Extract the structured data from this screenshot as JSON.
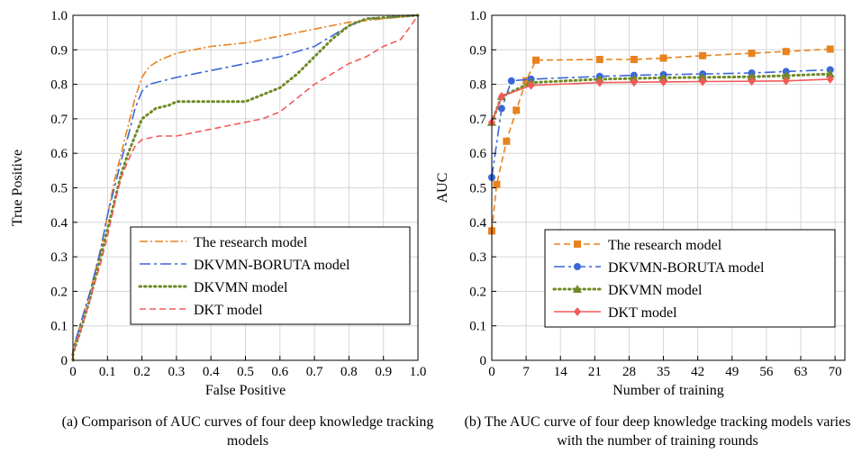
{
  "charts": [
    {
      "type": "line",
      "xlabel": "False Positive",
      "ylabel": "True Positive",
      "xlim": [
        0,
        1
      ],
      "ylim": [
        0,
        1
      ],
      "xticks": [
        "0",
        "0.1",
        "0.2",
        "0.3",
        "0.4",
        "0.5",
        "0.6",
        "0.7",
        "0.8",
        "0.9",
        "1.0"
      ],
      "yticks": [
        "0",
        "0.1",
        "0.2",
        "0.3",
        "0.4",
        "0.5",
        "0.6",
        "0.7",
        "0.8",
        "0.9",
        "1.0"
      ],
      "grid": true,
      "legend_position": "bottom-right",
      "caption": "(a) Comparison of AUC curves of four deep knowledge tracking models",
      "series": [
        {
          "name": "The research model",
          "color": "#e8821e",
          "style": "dashdot",
          "points": [
            [
              0,
              0
            ],
            [
              0,
              0.03
            ],
            [
              0.02,
              0.1
            ],
            [
              0.05,
              0.2
            ],
            [
              0.08,
              0.32
            ],
            [
              0.1,
              0.42
            ],
            [
              0.12,
              0.52
            ],
            [
              0.14,
              0.6
            ],
            [
              0.16,
              0.68
            ],
            [
              0.18,
              0.76
            ],
            [
              0.2,
              0.82
            ],
            [
              0.22,
              0.85
            ],
            [
              0.25,
              0.87
            ],
            [
              0.3,
              0.89
            ],
            [
              0.35,
              0.9
            ],
            [
              0.4,
              0.91
            ],
            [
              0.5,
              0.92
            ],
            [
              0.6,
              0.94
            ],
            [
              0.7,
              0.96
            ],
            [
              0.8,
              0.98
            ],
            [
              0.9,
              0.99
            ],
            [
              1.0,
              1.0
            ]
          ]
        },
        {
          "name": "DKVMN-BORUTA model",
          "color": "#3a67d8",
          "style": "longdashdot",
          "points": [
            [
              0,
              0
            ],
            [
              0,
              0.03
            ],
            [
              0.02,
              0.1
            ],
            [
              0.05,
              0.2
            ],
            [
              0.08,
              0.32
            ],
            [
              0.1,
              0.42
            ],
            [
              0.12,
              0.5
            ],
            [
              0.14,
              0.58
            ],
            [
              0.16,
              0.65
            ],
            [
              0.18,
              0.73
            ],
            [
              0.2,
              0.78
            ],
            [
              0.22,
              0.8
            ],
            [
              0.3,
              0.82
            ],
            [
              0.4,
              0.84
            ],
            [
              0.5,
              0.86
            ],
            [
              0.6,
              0.88
            ],
            [
              0.7,
              0.91
            ],
            [
              0.75,
              0.94
            ],
            [
              0.8,
              0.97
            ],
            [
              0.85,
              0.99
            ],
            [
              1.0,
              1.0
            ]
          ]
        },
        {
          "name": "DKVMN model",
          "color": "#6e8a25",
          "style": "dotted",
          "points": [
            [
              0,
              0
            ],
            [
              0,
              0.02
            ],
            [
              0.02,
              0.08
            ],
            [
              0.05,
              0.18
            ],
            [
              0.08,
              0.3
            ],
            [
              0.1,
              0.38
            ],
            [
              0.12,
              0.46
            ],
            [
              0.14,
              0.54
            ],
            [
              0.16,
              0.6
            ],
            [
              0.18,
              0.65
            ],
            [
              0.2,
              0.7
            ],
            [
              0.24,
              0.73
            ],
            [
              0.28,
              0.74
            ],
            [
              0.3,
              0.75
            ],
            [
              0.35,
              0.75
            ],
            [
              0.4,
              0.75
            ],
            [
              0.45,
              0.75
            ],
            [
              0.5,
              0.75
            ],
            [
              0.55,
              0.77
            ],
            [
              0.6,
              0.79
            ],
            [
              0.65,
              0.83
            ],
            [
              0.7,
              0.88
            ],
            [
              0.75,
              0.93
            ],
            [
              0.8,
              0.97
            ],
            [
              0.85,
              0.99
            ],
            [
              1.0,
              1.0
            ]
          ]
        },
        {
          "name": "DKT model",
          "color": "#f35a5a",
          "style": "dashed",
          "points": [
            [
              0,
              0
            ],
            [
              0,
              0.02
            ],
            [
              0.02,
              0.08
            ],
            [
              0.05,
              0.18
            ],
            [
              0.08,
              0.28
            ],
            [
              0.1,
              0.36
            ],
            [
              0.12,
              0.45
            ],
            [
              0.14,
              0.53
            ],
            [
              0.16,
              0.58
            ],
            [
              0.18,
              0.62
            ],
            [
              0.2,
              0.64
            ],
            [
              0.25,
              0.65
            ],
            [
              0.3,
              0.65
            ],
            [
              0.35,
              0.66
            ],
            [
              0.4,
              0.67
            ],
            [
              0.5,
              0.69
            ],
            [
              0.55,
              0.7
            ],
            [
              0.6,
              0.72
            ],
            [
              0.65,
              0.76
            ],
            [
              0.7,
              0.8
            ],
            [
              0.75,
              0.83
            ],
            [
              0.8,
              0.86
            ],
            [
              0.85,
              0.88
            ],
            [
              0.9,
              0.91
            ],
            [
              0.95,
              0.93
            ],
            [
              0.98,
              0.97
            ],
            [
              1.0,
              1.0
            ]
          ]
        }
      ]
    },
    {
      "type": "line",
      "xlabel": "Number of training",
      "ylabel": "AUC",
      "xlim": [
        0,
        72
      ],
      "ylim": [
        0,
        1
      ],
      "xticks": [
        "0",
        "7",
        "14",
        "21",
        "28",
        "35",
        "42",
        "49",
        "56",
        "63",
        "70"
      ],
      "xtick_values": [
        0,
        7,
        14,
        21,
        28,
        35,
        42,
        49,
        56,
        63,
        70
      ],
      "yticks": [
        "0",
        "0.1",
        "0.2",
        "0.3",
        "0.4",
        "0.5",
        "0.6",
        "0.7",
        "0.8",
        "0.9",
        "1.0"
      ],
      "grid": true,
      "legend_position": "bottom-right",
      "caption": "(b) The AUC curve of four deep knowledge tracking models varies with the number of training rounds",
      "series": [
        {
          "name": "The research model",
          "color": "#e8821e",
          "style": "dashed",
          "marker": "square",
          "points": [
            [
              0,
              0.375
            ],
            [
              1,
              0.51
            ],
            [
              3,
              0.635
            ],
            [
              5,
              0.725
            ],
            [
              7,
              0.81
            ],
            [
              9,
              0.87
            ],
            [
              22,
              0.872
            ],
            [
              29,
              0.872
            ],
            [
              35,
              0.876
            ],
            [
              43,
              0.883
            ],
            [
              53,
              0.89
            ],
            [
              60,
              0.895
            ],
            [
              69,
              0.902
            ]
          ]
        },
        {
          "name": "DKVMN-BORUTA model",
          "color": "#3a67d8",
          "style": "longdashdot",
          "marker": "circle",
          "points": [
            [
              0,
              0.53
            ],
            [
              2,
              0.73
            ],
            [
              4,
              0.81
            ],
            [
              8,
              0.815
            ],
            [
              22,
              0.823
            ],
            [
              29,
              0.826
            ],
            [
              35,
              0.828
            ],
            [
              43,
              0.83
            ],
            [
              53,
              0.833
            ],
            [
              60,
              0.837
            ],
            [
              69,
              0.842
            ]
          ]
        },
        {
          "name": "DKVMN model",
          "color": "#6e8a25",
          "style": "dotted",
          "marker": "triangle",
          "points": [
            [
              0,
              0.69
            ],
            [
              2,
              0.765
            ],
            [
              8,
              0.805
            ],
            [
              22,
              0.815
            ],
            [
              29,
              0.817
            ],
            [
              35,
              0.819
            ],
            [
              43,
              0.82
            ],
            [
              53,
              0.822
            ],
            [
              60,
              0.825
            ],
            [
              69,
              0.83
            ]
          ]
        },
        {
          "name": "DKT model",
          "color": "#f35a5a",
          "style": "solid",
          "marker": "diamond",
          "points": [
            [
              0,
              0.69
            ],
            [
              2,
              0.765
            ],
            [
              8,
              0.797
            ],
            [
              22,
              0.805
            ],
            [
              29,
              0.806
            ],
            [
              35,
              0.807
            ],
            [
              43,
              0.808
            ],
            [
              53,
              0.809
            ],
            [
              60,
              0.81
            ],
            [
              69,
              0.815
            ]
          ]
        }
      ]
    }
  ]
}
